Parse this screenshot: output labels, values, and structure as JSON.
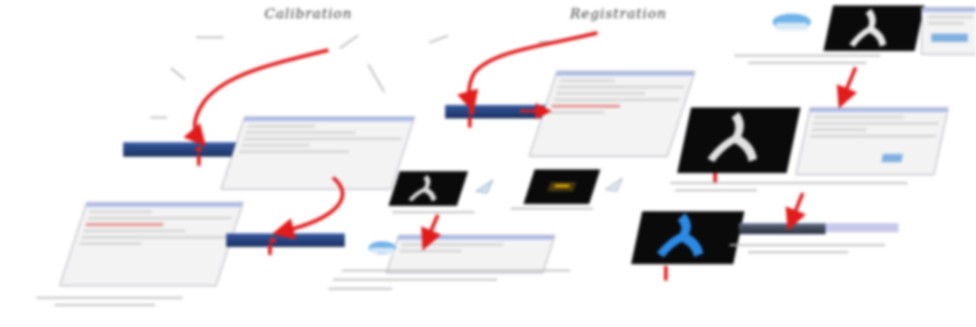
{
  "labels": {
    "left_title": "Calibration",
    "middle_title": "Registration"
  },
  "colors": {
    "arrow": "#e21b1b",
    "toolbar": "#24407e",
    "window_title": "#a9b9e8",
    "highlight_blue": "#2a8ae6"
  },
  "icons": [
    "flow-arrow-icon",
    "app-toolbar",
    "dialog-window",
    "xray-thumbnail",
    "mouse-icon"
  ]
}
